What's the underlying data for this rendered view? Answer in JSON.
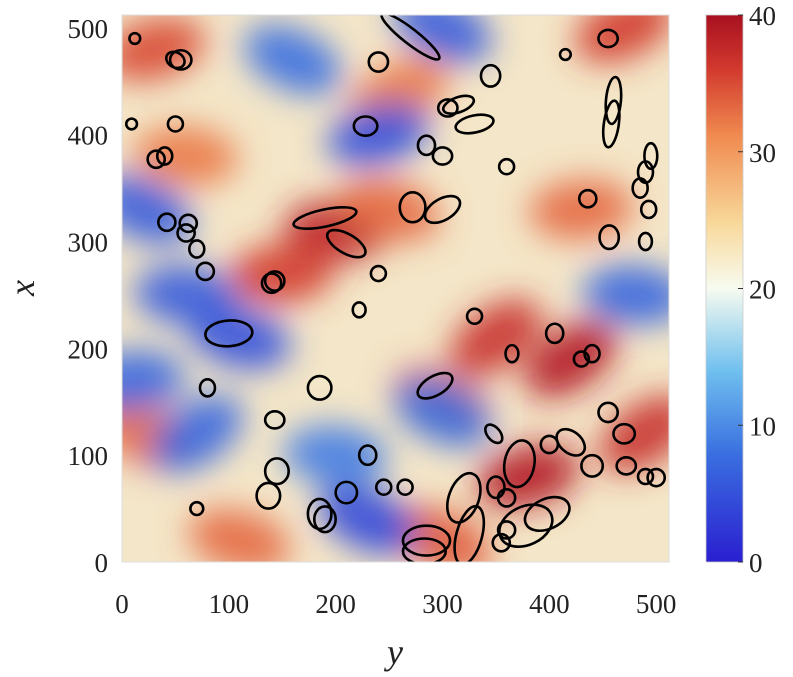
{
  "chart_data": {
    "type": "heatmap",
    "xlabel": "y",
    "ylabel": "x",
    "xlim": [
      0,
      512
    ],
    "ylim": [
      0,
      512
    ],
    "x_ticks": [
      "0",
      "100",
      "200",
      "300",
      "400",
      "500"
    ],
    "y_ticks": [
      "0",
      "100",
      "200",
      "300",
      "400",
      "500"
    ],
    "colorbar": {
      "range": [
        0,
        40
      ],
      "ticks": [
        "0",
        "10",
        "20",
        "30",
        "40"
      ],
      "colormap": "blue-white-red"
    },
    "colors": {
      "low": "#2a1fd0",
      "mid_low": "#5aa8e6",
      "mid": "#f7fbef",
      "mid_high": "#f4a868",
      "high": "#a81020",
      "contour": "#000000"
    },
    "contour_level_note_shown": false,
    "hotspots": [
      {
        "y": 200,
        "x": 310,
        "value": 38
      },
      {
        "y": 150,
        "x": 270,
        "value": 36
      },
      {
        "y": 350,
        "x": 210,
        "value": 37
      },
      {
        "y": 420,
        "x": 190,
        "value": 39
      },
      {
        "y": 380,
        "x": 80,
        "value": 39
      },
      {
        "y": 490,
        "x": 120,
        "value": 37
      },
      {
        "y": 30,
        "x": 480,
        "value": 35
      },
      {
        "y": 470,
        "x": 500,
        "value": 36
      },
      {
        "y": 430,
        "x": 330,
        "value": 33
      },
      {
        "y": 260,
        "x": 440,
        "value": 32
      },
      {
        "y": 300,
        "x": 150,
        "value": 34
      },
      {
        "y": 20,
        "x": 120,
        "value": 33
      },
      {
        "y": 110,
        "x": 20,
        "value": 33
      },
      {
        "y": 300,
        "x": 20,
        "value": 34
      },
      {
        "y": 60,
        "x": 380,
        "value": 32
      },
      {
        "y": 250,
        "x": 330,
        "value": 33
      },
      {
        "y": 110,
        "x": 210,
        "value": 5
      },
      {
        "y": 230,
        "x": 40,
        "value": 4
      },
      {
        "y": 300,
        "x": 500,
        "value": 6
      },
      {
        "y": 240,
        "x": 400,
        "value": 5
      },
      {
        "y": 20,
        "x": 330,
        "value": 6
      },
      {
        "y": 70,
        "x": 120,
        "value": 7
      },
      {
        "y": 60,
        "x": 250,
        "value": 6
      },
      {
        "y": 480,
        "x": 250,
        "value": 7
      },
      {
        "y": 300,
        "x": 140,
        "value": 8
      },
      {
        "y": 160,
        "x": 470,
        "value": 8
      },
      {
        "y": 10,
        "x": 170,
        "value": 7
      },
      {
        "y": 200,
        "x": 100,
        "value": 9
      }
    ],
    "contours": [
      {
        "y": 100,
        "x": 214,
        "ry": 22,
        "rx": 12,
        "rot": -4
      },
      {
        "y": 190,
        "x": 322,
        "ry": 30,
        "rx": 8,
        "rot": -12
      },
      {
        "y": 210,
        "x": 298,
        "ry": 20,
        "rx": 9,
        "rot": 30
      },
      {
        "y": 272,
        "x": 332,
        "ry": 12,
        "rx": 14,
        "rot": 0
      },
      {
        "y": 270,
        "x": 492,
        "ry": 34,
        "rx": 7,
        "rot": 38
      },
      {
        "y": 240,
        "x": 468,
        "ry": 9,
        "rx": 9,
        "rot": 0
      },
      {
        "y": 315,
        "x": 428,
        "ry": 15,
        "rx": 7,
        "rot": -20
      },
      {
        "y": 228,
        "x": 408,
        "ry": 11,
        "rx": 9,
        "rot": 0
      },
      {
        "y": 460,
        "x": 432,
        "ry": 7,
        "rx": 22,
        "rot": 5
      },
      {
        "y": 300,
        "x": 380,
        "ry": 9,
        "rx": 8,
        "rot": 0
      },
      {
        "y": 360,
        "x": 370,
        "ry": 7,
        "rx": 7,
        "rot": 0
      },
      {
        "y": 436,
        "x": 340,
        "ry": 8,
        "rx": 8,
        "rot": 0
      },
      {
        "y": 456,
        "x": 304,
        "ry": 9,
        "rx": 11,
        "rot": 0
      },
      {
        "y": 490,
        "x": 365,
        "ry": 7,
        "rx": 10,
        "rot": 0
      },
      {
        "y": 493,
        "x": 330,
        "ry": 7,
        "rx": 8,
        "rot": 0
      },
      {
        "y": 50,
        "x": 470,
        "ry": 9,
        "rx": 7,
        "rot": 30
      },
      {
        "y": 40,
        "x": 380,
        "ry": 7,
        "rx": 8,
        "rot": 0
      },
      {
        "y": 42,
        "x": 318,
        "ry": 8,
        "rx": 8,
        "rot": 0
      },
      {
        "y": 60,
        "x": 308,
        "ry": 8,
        "rx": 8,
        "rot": 0
      },
      {
        "y": 78,
        "x": 272,
        "ry": 8,
        "rx": 8,
        "rot": 0
      },
      {
        "y": 140,
        "x": 261,
        "ry": 9,
        "rx": 9,
        "rot": 0
      },
      {
        "y": 240,
        "x": 270,
        "ry": 7,
        "rx": 7,
        "rot": 0
      },
      {
        "y": 222,
        "x": 236,
        "ry": 6,
        "rx": 7,
        "rot": 0
      },
      {
        "y": 330,
        "x": 230,
        "ry": 7,
        "rx": 7,
        "rot": 0
      },
      {
        "y": 293,
        "x": 165,
        "ry": 18,
        "rx": 9,
        "rot": -30
      },
      {
        "y": 405,
        "x": 214,
        "ry": 8,
        "rx": 9,
        "rot": 0
      },
      {
        "y": 430,
        "x": 190,
        "ry": 7,
        "rx": 7,
        "rot": 0
      },
      {
        "y": 372,
        "x": 92,
        "ry": 14,
        "rx": 22,
        "rot": 10
      },
      {
        "y": 420,
        "x": 112,
        "ry": 15,
        "rx": 10,
        "rot": 40
      },
      {
        "y": 440,
        "x": 90,
        "ry": 10,
        "rx": 10,
        "rot": 0
      },
      {
        "y": 472,
        "x": 90,
        "ry": 9,
        "rx": 8,
        "rot": 0
      },
      {
        "y": 500,
        "x": 79,
        "ry": 8,
        "rx": 8,
        "rot": 0
      },
      {
        "y": 378,
        "x": 34,
        "ry": 26,
        "rx": 18,
        "rot": -25
      },
      {
        "y": 325,
        "x": 25,
        "ry": 12,
        "rx": 28,
        "rot": 15
      },
      {
        "y": 360,
        "x": 60,
        "ry": 8,
        "rx": 8,
        "rot": 0
      },
      {
        "y": 355,
        "x": 18,
        "ry": 8,
        "rx": 8,
        "rot": 0
      },
      {
        "y": 283,
        "x": 10,
        "ry": 20,
        "rx": 12,
        "rot": 0
      },
      {
        "y": 190,
        "x": 40,
        "ry": 10,
        "rx": 12,
        "rot": 0
      },
      {
        "y": 210,
        "x": 65,
        "ry": 10,
        "rx": 10,
        "rot": 0
      },
      {
        "y": 245,
        "x": 70,
        "ry": 7,
        "rx": 7,
        "rot": 0
      },
      {
        "y": 137,
        "x": 62,
        "ry": 11,
        "rx": 12,
        "rot": 0
      },
      {
        "y": 185,
        "x": 163,
        "ry": 11,
        "rx": 11,
        "rot": 0
      },
      {
        "y": 143,
        "x": 133,
        "ry": 9,
        "rx": 8,
        "rot": 0
      },
      {
        "y": 80,
        "x": 163,
        "ry": 7,
        "rx": 8,
        "rot": 0
      },
      {
        "y": 70,
        "x": 293,
        "ry": 7,
        "rx": 8,
        "rot": 0
      },
      {
        "y": 143,
        "x": 263,
        "ry": 9,
        "rx": 9,
        "rot": 0
      },
      {
        "y": 55,
        "x": 470,
        "ry": 10,
        "rx": 9,
        "rot": 0
      },
      {
        "y": 50,
        "x": 410,
        "ry": 7,
        "rx": 7,
        "rot": 0
      },
      {
        "y": 32,
        "x": 377,
        "ry": 8,
        "rx": 8,
        "rot": 0
      },
      {
        "y": 62,
        "x": 317,
        "ry": 8,
        "rx": 8,
        "rot": 0
      },
      {
        "y": 12,
        "x": 490,
        "ry": 5,
        "rx": 5,
        "rot": 0
      },
      {
        "y": 9,
        "x": 410,
        "ry": 5,
        "rx": 5,
        "rot": 0
      },
      {
        "y": 70,
        "x": 50,
        "ry": 6,
        "rx": 6,
        "rot": 0
      },
      {
        "y": 145,
        "x": 85,
        "ry": 11,
        "rx": 12,
        "rot": 0
      },
      {
        "y": 185,
        "x": 45,
        "ry": 11,
        "rx": 14,
        "rot": 0
      },
      {
        "y": 230,
        "x": 100,
        "ry": 8,
        "rx": 9,
        "rot": 0
      },
      {
        "y": 265,
        "x": 70,
        "ry": 7,
        "rx": 7,
        "rot": 0
      },
      {
        "y": 285,
        "x": 20,
        "ry": 22,
        "rx": 14,
        "rot": 0
      },
      {
        "y": 320,
        "x": 60,
        "ry": 14,
        "rx": 24,
        "rot": 20
      },
      {
        "y": 350,
        "x": 70,
        "ry": 8,
        "rx": 10,
        "rot": 0
      },
      {
        "y": 348,
        "x": 120,
        "ry": 6,
        "rx": 10,
        "rot": -40
      },
      {
        "y": 360,
        "x": 30,
        "ry": 8,
        "rx": 8,
        "rot": 0
      },
      {
        "y": 398,
        "x": 45,
        "ry": 22,
        "rx": 14,
        "rot": -25
      },
      {
        "y": 400,
        "x": 110,
        "ry": 8,
        "rx": 8,
        "rot": 0
      },
      {
        "y": 490,
        "x": 80,
        "ry": 7,
        "rx": 7,
        "rot": 0
      },
      {
        "y": 470,
        "x": 120,
        "ry": 10,
        "rx": 9,
        "rot": 0
      },
      {
        "y": 455,
        "x": 140,
        "ry": 9,
        "rx": 9,
        "rot": 0
      },
      {
        "y": 365,
        "x": 195,
        "ry": 6,
        "rx": 8,
        "rot": 0
      },
      {
        "y": 440,
        "x": 195,
        "ry": 7,
        "rx": 8,
        "rot": 0
      },
      {
        "y": 490,
        "x": 300,
        "ry": 6,
        "rx": 8,
        "rot": 0
      },
      {
        "y": 485,
        "x": 350,
        "ry": 7,
        "rx": 9,
        "rot": 0
      },
      {
        "y": 495,
        "x": 380,
        "ry": 6,
        "rx": 12,
        "rot": 0
      },
      {
        "y": 458,
        "x": 410,
        "ry": 7,
        "rx": 22,
        "rot": 8
      },
      {
        "y": 415,
        "x": 475,
        "ry": 5,
        "rx": 5,
        "rot": 0
      },
      {
        "y": 455,
        "x": 490,
        "ry": 9,
        "rx": 8,
        "rot": 0
      },
      {
        "y": 330,
        "x": 410,
        "ry": 18,
        "rx": 8,
        "rot": -12
      },
      {
        "y": 345,
        "x": 455,
        "ry": 9,
        "rx": 10,
        "rot": 0
      },
      {
        "y": 305,
        "x": 425,
        "ry": 9,
        "rx": 8,
        "rot": 0
      },
      {
        "y": 285,
        "x": 390,
        "ry": 8,
        "rx": 9,
        "rot": 0
      },
      {
        "y": 300,
        "x": 330,
        "ry": 18,
        "rx": 10,
        "rot": -30
      }
    ]
  }
}
